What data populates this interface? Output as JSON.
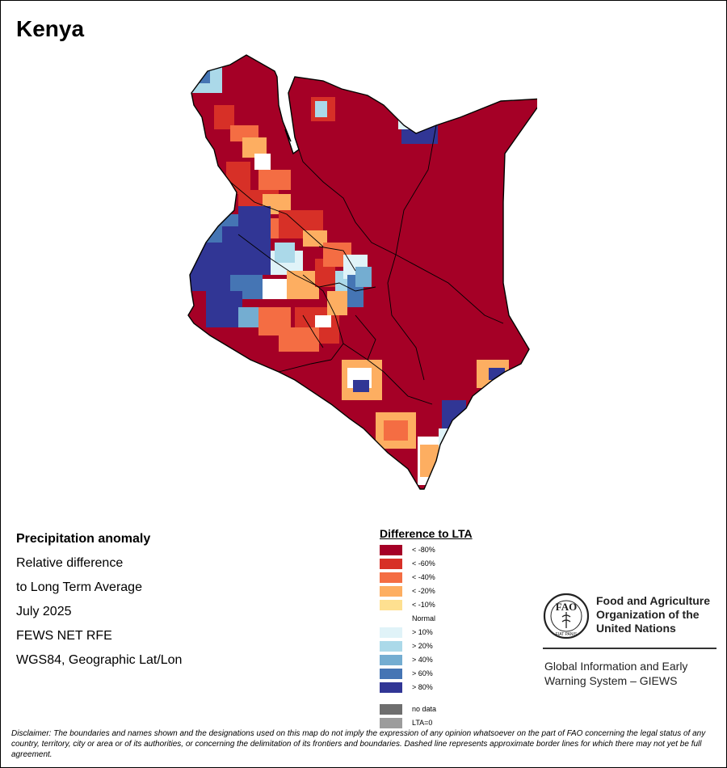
{
  "map": {
    "title": "Kenya",
    "colors": {
      "lt_minus_80": "#a50026",
      "lt_minus_60": "#d73027",
      "lt_minus_40": "#f46d43",
      "lt_minus_20": "#fdae61",
      "lt_minus_10": "#fee090",
      "normal": "#ffffff",
      "gt_10": "#e0f3f8",
      "gt_20": "#abd9e9",
      "gt_40": "#74add1",
      "gt_60": "#4575b4",
      "gt_80": "#313695",
      "no_data": "#6e6e6e",
      "lta_zero": "#9c9c9c"
    }
  },
  "info": {
    "heading": "Precipitation anomaly",
    "line1": "Relative difference",
    "line2": "to Long Term Average",
    "period": "July 2025",
    "source": "FEWS NET RFE",
    "projection": "WGS84, Geographic Lat/Lon"
  },
  "legend": {
    "title": "Difference to LTA",
    "items": [
      {
        "label": "< -80%",
        "color": "#a50026"
      },
      {
        "label": "< -60%",
        "color": "#d73027"
      },
      {
        "label": "< -40%",
        "color": "#f46d43"
      },
      {
        "label": "< -20%",
        "color": "#fdae61"
      },
      {
        "label": "< -10%",
        "color": "#fee090"
      },
      {
        "label": "Normal",
        "color": "#ffffff"
      },
      {
        "label": "> 10%",
        "color": "#e0f3f8"
      },
      {
        "label": "> 20%",
        "color": "#abd9e9"
      },
      {
        "label": "> 40%",
        "color": "#74add1"
      },
      {
        "label": "> 60%",
        "color": "#4575b4"
      },
      {
        "label": "> 80%",
        "color": "#313695"
      }
    ],
    "extra": [
      {
        "label": "no data",
        "color": "#6e6e6e"
      },
      {
        "label": "LTA=0",
        "color": "#9c9c9c"
      }
    ]
  },
  "fao": {
    "logo_letters": "FAO",
    "logo_motto": "FIAT PANIS",
    "name_line1": "Food and Agriculture",
    "name_line2": "Organization of the",
    "name_line3": "United Nations",
    "giews_line1": "Global Information and Early",
    "giews_line2": "Warning System – GIEWS"
  },
  "disclaimer": "Disclaimer: The boundaries and names shown and the designations used on this map do not imply the expression of any opinion whatsoever on the part of FAO concerning the legal status of any country, territory, city or area or of its authorities, or concerning the delimitation of its frontiers and boundaries. Dashed line represents approximate border lines for which there may not yet be full agreement."
}
